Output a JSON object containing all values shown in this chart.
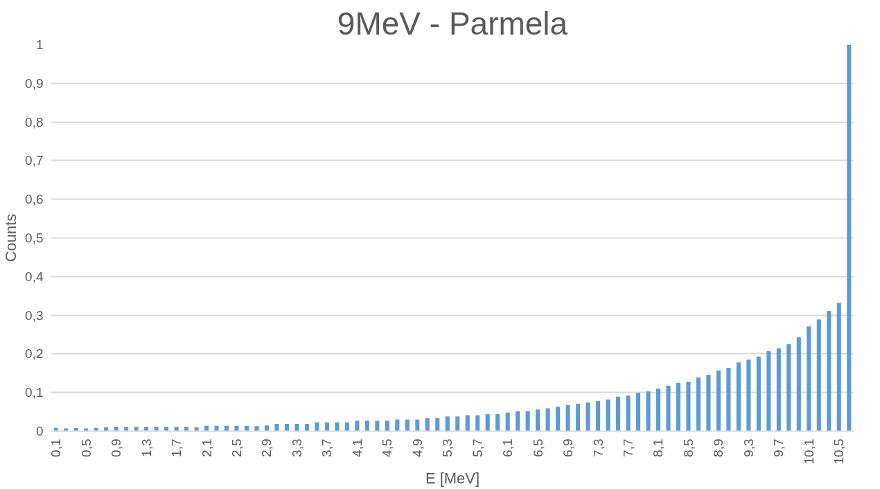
{
  "chart_data": {
    "type": "bar",
    "title": "9MeV - Parmela",
    "xlabel": "E [MeV]",
    "ylabel": "Counts",
    "color": "#5b9bd5",
    "categories": [
      "0,1",
      null,
      null,
      "0,5",
      null,
      null,
      "0,9",
      null,
      null,
      "1,3",
      null,
      null,
      "1,7",
      null,
      null,
      "2,1",
      null,
      null,
      "2,5",
      null,
      null,
      "2,9",
      null,
      null,
      "3,3",
      null,
      null,
      "3,7",
      null,
      null,
      "4,1",
      null,
      null,
      "4,5",
      null,
      null,
      "4,9",
      null,
      null,
      "5,3",
      null,
      null,
      "5,7",
      null,
      null,
      "6,1",
      null,
      null,
      "6,5",
      null,
      null,
      "6,9",
      null,
      null,
      "7,3",
      null,
      null,
      "7,7",
      null,
      null,
      "8,1",
      null,
      null,
      "8,5",
      null,
      null,
      "8,9",
      null,
      null,
      "9,3",
      null,
      null,
      "9,7",
      null,
      null,
      "10,1",
      null,
      null,
      "10,5",
      null
    ],
    "values": [
      0.008,
      0.007,
      0.008,
      0.007,
      0.008,
      0.01,
      0.011,
      0.011,
      0.011,
      0.011,
      0.011,
      0.011,
      0.011,
      0.011,
      0.01,
      0.014,
      0.014,
      0.014,
      0.014,
      0.014,
      0.013,
      0.015,
      0.019,
      0.019,
      0.019,
      0.019,
      0.023,
      0.023,
      0.023,
      0.023,
      0.027,
      0.027,
      0.027,
      0.027,
      0.03,
      0.03,
      0.03,
      0.034,
      0.034,
      0.038,
      0.038,
      0.041,
      0.041,
      0.044,
      0.044,
      0.048,
      0.052,
      0.052,
      0.056,
      0.059,
      0.063,
      0.067,
      0.071,
      0.074,
      0.078,
      0.082,
      0.089,
      0.092,
      0.099,
      0.103,
      0.11,
      0.118,
      0.125,
      0.128,
      0.139,
      0.146,
      0.157,
      0.164,
      0.178,
      0.185,
      0.193,
      0.207,
      0.214,
      0.225,
      0.243,
      0.271,
      0.289,
      0.311,
      0.332,
      1.0
    ],
    "ylim": [
      0,
      1
    ],
    "yticks": [
      0,
      {
        "value": 0.1,
        "label": "0,1"
      },
      {
        "value": 0.2,
        "label": "0,2"
      },
      {
        "value": 0.3,
        "label": "0,3"
      },
      {
        "value": 0.4,
        "label": "0,4"
      },
      {
        "value": 0.5,
        "label": "0,5"
      },
      {
        "value": 0.6,
        "label": "0,6"
      },
      {
        "value": 0.7,
        "label": "0,7"
      },
      {
        "value": 0.8,
        "label": "0,8"
      },
      {
        "value": 0.9,
        "label": "0,9"
      },
      1
    ],
    "grid": "y"
  }
}
